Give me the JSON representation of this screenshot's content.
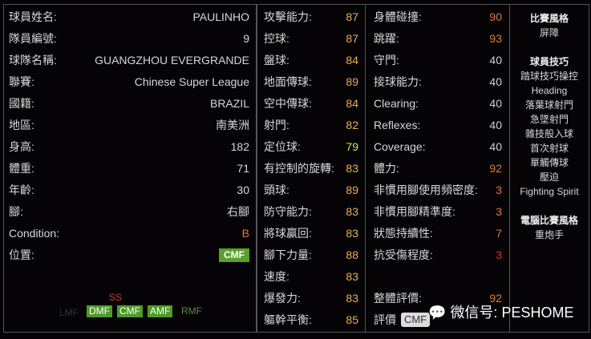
{
  "profile": [
    {
      "label": "球員姓名:",
      "value": "PAULINHO"
    },
    {
      "label": "隊員編號:",
      "value": "9"
    },
    {
      "label": "球隊名稱:",
      "value": "GUANGZHOU EVERGRANDE"
    },
    {
      "label": "聯賽:",
      "value": "Chinese Super League"
    },
    {
      "label": "國籍:",
      "value": "BRAZIL"
    },
    {
      "label": "地區:",
      "value": "南美洲"
    },
    {
      "label": "身高:",
      "value": "182"
    },
    {
      "label": "體重:",
      "value": "71"
    },
    {
      "label": "年齡:",
      "value": "30"
    },
    {
      "label": "腳:",
      "value": "右腳"
    },
    {
      "label": "Condition:",
      "value": "B"
    },
    {
      "label": "位置:",
      "value": "CMF"
    }
  ],
  "positions": {
    "primary": [
      "DMF",
      "CMF",
      "AMF"
    ],
    "secondary": "RMF",
    "faint": "LMF",
    "other": "SS"
  },
  "stats1": [
    {
      "label": "攻擊能力:",
      "value": "87",
      "c": "y"
    },
    {
      "label": "控球:",
      "value": "87",
      "c": "y"
    },
    {
      "label": "盤球:",
      "value": "84",
      "c": "y"
    },
    {
      "label": "地面傳球:",
      "value": "89",
      "c": "y"
    },
    {
      "label": "空中傳球:",
      "value": "84",
      "c": "y"
    },
    {
      "label": "射門:",
      "value": "82",
      "c": "y"
    },
    {
      "label": "定位球:",
      "value": "79",
      "c": "g"
    },
    {
      "label": "有控制的旋轉:",
      "value": "83",
      "c": "y"
    },
    {
      "label": "頭球:",
      "value": "89",
      "c": "y"
    },
    {
      "label": "防守能力:",
      "value": "83",
      "c": "y"
    },
    {
      "label": "將球贏回:",
      "value": "83",
      "c": "y"
    },
    {
      "label": "腳下力量:",
      "value": "88",
      "c": "y"
    },
    {
      "label": "速度:",
      "value": "83",
      "c": "y"
    },
    {
      "label": "爆發力:",
      "value": "83",
      "c": "y"
    },
    {
      "label": "軀幹平衡:",
      "value": "85",
      "c": "y"
    }
  ],
  "stats2": [
    {
      "label": "身體碰撞:",
      "value": "90",
      "c": "o"
    },
    {
      "label": "跳躍:",
      "value": "93",
      "c": "o"
    },
    {
      "label": "守門:",
      "value": "40",
      "c": "w"
    },
    {
      "label": "接球能力:",
      "value": "40",
      "c": "w"
    },
    {
      "label": "Clearing:",
      "value": "40",
      "c": "w"
    },
    {
      "label": "Reflexes:",
      "value": "40",
      "c": "w"
    },
    {
      "label": "Coverage:",
      "value": "40",
      "c": "w"
    },
    {
      "label": "體力:",
      "value": "92",
      "c": "o"
    },
    {
      "label": "非慣用腳使用頻密度:",
      "value": "3",
      "c": "o"
    },
    {
      "label": "非慣用腳精準度:",
      "value": "3",
      "c": "o"
    },
    {
      "label": "狀態持續性:",
      "value": "7",
      "c": "o"
    },
    {
      "label": "抗受傷程度:",
      "value": "3",
      "c": "r"
    }
  ],
  "overall": {
    "label": "整體評價:",
    "value": "92",
    "rating_label": "評價",
    "rating": "CMF"
  },
  "style": {
    "title": "比賽風格",
    "value": "屏障",
    "skills_title": "球員技巧",
    "skills": [
      "踏球技巧操控",
      "Heading",
      "落葉球射門",
      "急墜射門",
      "雜技般入球",
      "首次射球",
      "單觸傳球",
      "壓迫",
      "Fighting Spirit"
    ],
    "ai_title": "電腦比賽風格",
    "ai": "重炮手"
  },
  "watermark": "微信号: PESHOME"
}
